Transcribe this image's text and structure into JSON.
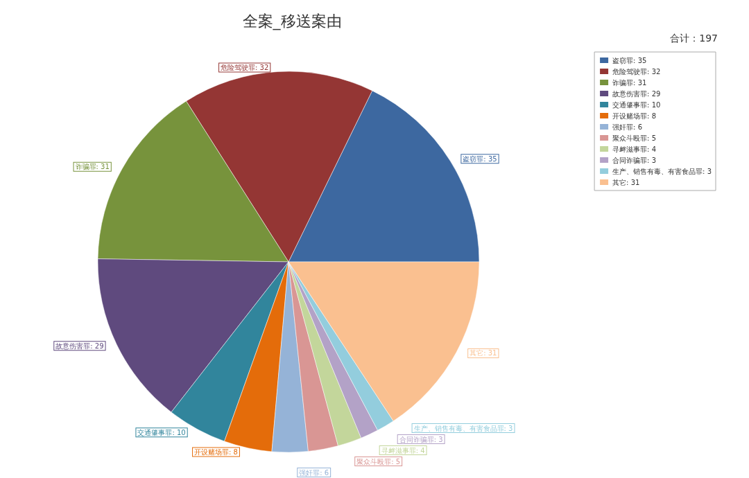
{
  "chart_data": {
    "type": "pie",
    "title": "全案_移送案由",
    "annotations": [
      "合计：197"
    ],
    "categories": [
      "盗窃罪: 35",
      "危险驾驶罪: 32",
      "诈骗罪: 31",
      "故意伤害罪: 29",
      "交通肇事罪: 10",
      "开设赌场罪: 8",
      "强奸罪: 6",
      "聚众斗殴罪: 5",
      "寻衅滋事罪: 4",
      "合同诈骗罪: 3",
      "生产、销售有毒、有害食品罪: 3",
      "其它: 31"
    ],
    "values": [
      35,
      32,
      31,
      29,
      10,
      8,
      6,
      5,
      4,
      3,
      3,
      31
    ],
    "colors": [
      "#3d68a0",
      "#943634",
      "#77933c",
      "#5f4a7e",
      "#31859c",
      "#e46c0a",
      "#95b3d7",
      "#d99694",
      "#c3d69b",
      "#b3a2c7",
      "#93cddd",
      "#fac090"
    ],
    "legend": "top right"
  }
}
